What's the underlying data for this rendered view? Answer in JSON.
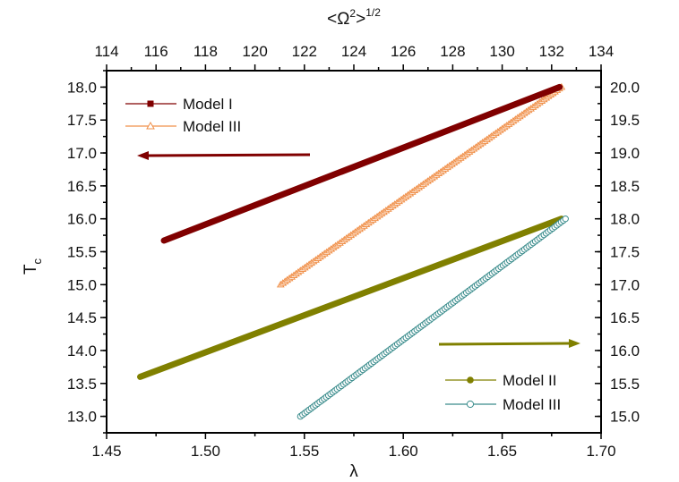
{
  "chart_data": {
    "type": "line",
    "title": "",
    "xlabel": "λ",
    "ylabel": "T",
    "ylabel_subscript": "c",
    "top_xlabel": "<Ω",
    "top_xlabel_sup": "2",
    "top_xlabel_tail": ">",
    "top_xlabel_power": "1/2",
    "xlim": [
      1.45,
      1.7
    ],
    "ylim_left": [
      12.75,
      18.25
    ],
    "ylim_right": [
      14.75,
      20.25
    ],
    "top_xlim": [
      114,
      134
    ],
    "x_ticks": [
      "1.45",
      "1.50",
      "1.55",
      "1.60",
      "1.65",
      "1.70"
    ],
    "x_tick_values": [
      1.45,
      1.5,
      1.55,
      1.6,
      1.65,
      1.7
    ],
    "top_ticks": [
      "114",
      "116",
      "118",
      "120",
      "122",
      "124",
      "126",
      "128",
      "130",
      "132",
      "134"
    ],
    "top_tick_values": [
      114,
      116,
      118,
      120,
      122,
      124,
      126,
      128,
      130,
      132,
      134
    ],
    "left_ticks": [
      "13.0",
      "13.5",
      "14.0",
      "14.5",
      "15.0",
      "15.5",
      "16.0",
      "16.5",
      "17.0",
      "17.5",
      "18.0"
    ],
    "left_tick_values": [
      13.0,
      13.5,
      14.0,
      14.5,
      15.0,
      15.5,
      16.0,
      16.5,
      17.0,
      17.5,
      18.0
    ],
    "right_ticks": [
      "15.0",
      "15.5",
      "16.0",
      "16.5",
      "17.0",
      "17.5",
      "18.0",
      "18.5",
      "19.0",
      "19.5",
      "20.0"
    ],
    "right_tick_values": [
      15.0,
      15.5,
      16.0,
      16.5,
      17.0,
      17.5,
      18.0,
      18.5,
      19.0,
      19.5,
      20.0
    ],
    "grid": false,
    "series": [
      {
        "name": "Model I",
        "axis": "left",
        "color": "#800000",
        "marker": "square-filled",
        "x": [
          1.479,
          1.679
        ],
        "y": [
          15.67,
          18.0
        ]
      },
      {
        "name": "Model III",
        "axis": "left",
        "color": "#F0904A",
        "marker": "triangle-open",
        "x": [
          1.538,
          1.68
        ],
        "y": [
          15.0,
          18.0
        ]
      },
      {
        "name": "Model II",
        "axis": "right",
        "color": "#808000",
        "marker": "circle-filled",
        "x": [
          1.467,
          1.68
        ],
        "y": [
          15.6,
          18.0
        ]
      },
      {
        "name": "Model III",
        "axis": "right",
        "color": "#3A8C8C",
        "marker": "circle-open",
        "x": [
          1.548,
          1.682
        ],
        "y": [
          15.0,
          18.0
        ]
      }
    ],
    "legends": [
      {
        "placement": "top-left",
        "entries": [
          0,
          1
        ]
      },
      {
        "placement": "bottom-right",
        "entries": [
          2,
          3
        ]
      }
    ],
    "annotations": [
      {
        "type": "arrow",
        "direction": "left",
        "meaning": "left axis",
        "color": "#800000"
      },
      {
        "type": "arrow",
        "direction": "right",
        "meaning": "right axis",
        "color": "#808000"
      }
    ]
  }
}
